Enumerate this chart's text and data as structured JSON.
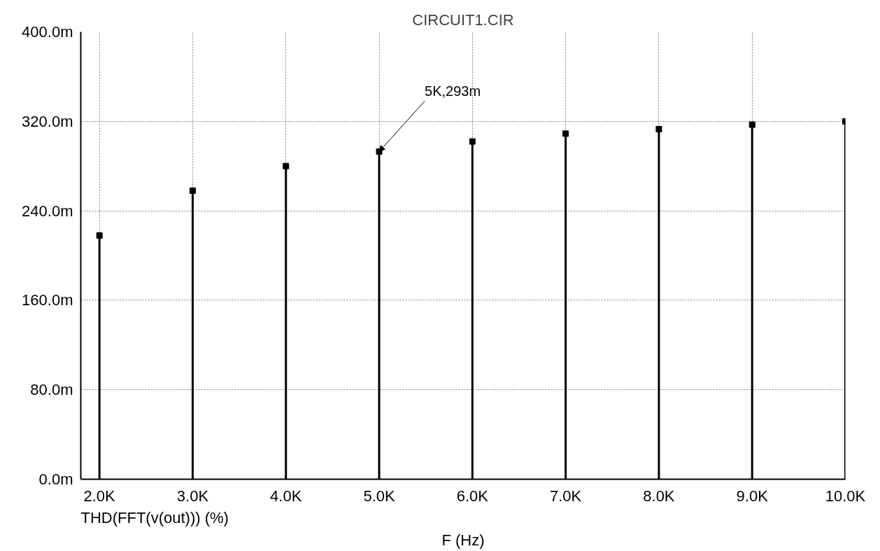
{
  "chart_data": {
    "type": "lollipop",
    "title": "CIRCUIT1.CIR",
    "xlabel": "F (Hz)",
    "x": [
      2000,
      3000,
      4000,
      5000,
      6000,
      7000,
      8000,
      9000,
      10000
    ],
    "values": [
      218,
      258,
      280,
      293,
      302,
      309,
      313,
      317,
      320
    ],
    "color": "#000000",
    "marker": "square",
    "grid": true,
    "xlim": [
      1800,
      10000
    ],
    "xticks": [
      {
        "value": 2000,
        "label": "2.0K"
      },
      {
        "value": 3000,
        "label": "3.0K"
      },
      {
        "value": 4000,
        "label": "4.0K"
      },
      {
        "value": 5000,
        "label": "5.0K"
      },
      {
        "value": 6000,
        "label": "6.0K"
      },
      {
        "value": 7000,
        "label": "7.0K"
      },
      {
        "value": 8000,
        "label": "8.0K"
      },
      {
        "value": 9000,
        "label": "9.0K"
      },
      {
        "value": 10000,
        "label": "10.0K"
      }
    ],
    "ylim": [
      0,
      400
    ],
    "yticks": [
      {
        "value": 0,
        "label": "0.0m"
      },
      {
        "value": 80,
        "label": "80.0m"
      },
      {
        "value": 160,
        "label": "160.0m"
      },
      {
        "value": 240,
        "label": "240.0m"
      },
      {
        "value": 320,
        "label": "320.0m"
      },
      {
        "value": 400,
        "label": "400.0m"
      }
    ],
    "annotations": [
      "THD(FFT(v(out))) (%)",
      {
        "text": "5K,293m",
        "x": 5000,
        "y": 293
      }
    ]
  }
}
